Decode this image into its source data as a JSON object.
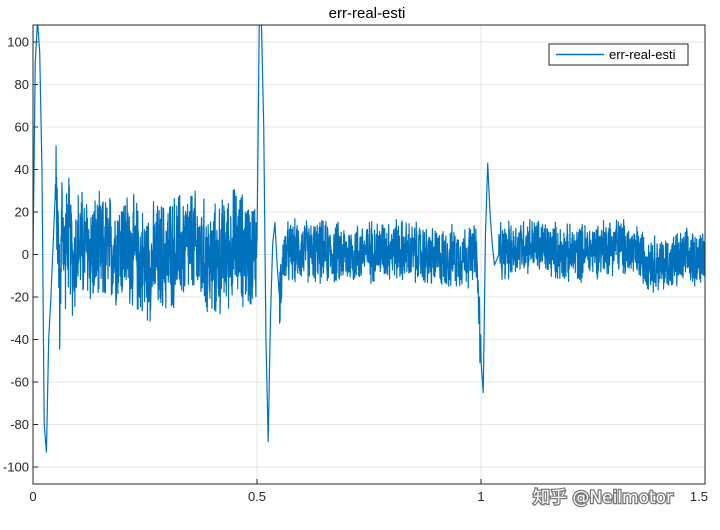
{
  "chart_data": {
    "type": "line",
    "title": "err-real-esti",
    "xlabel": "",
    "ylabel": "",
    "xlim": [
      0,
      1.5
    ],
    "ylim": [
      -108,
      108
    ],
    "grid": true,
    "legend_position": "top-right",
    "x_ticks": [
      0,
      0.5,
      1,
      1.5
    ],
    "x_tick_labels": [
      "0",
      "0.5",
      "1",
      "1.5"
    ],
    "y_ticks": [
      -100,
      -80,
      -60,
      -40,
      -20,
      0,
      20,
      40,
      60,
      80,
      100
    ],
    "y_tick_labels": [
      "-100",
      "-80",
      "-60",
      "-40",
      "-20",
      "0",
      "20",
      "40",
      "60",
      "80",
      "100"
    ],
    "series": [
      {
        "name": "err-real-esti",
        "color": "#0072BD",
        "x": [
          0,
          0.005,
          0.01,
          0.015,
          0.02,
          0.025,
          0.03,
          0.035,
          0.04,
          0.045,
          0.05,
          0.055,
          0.06,
          0.065,
          0.07,
          0.08,
          0.09,
          0.1,
          0.15,
          0.2,
          0.25,
          0.3,
          0.35,
          0.4,
          0.45,
          0.49,
          0.5,
          0.505,
          0.51,
          0.515,
          0.52,
          0.525,
          0.53,
          0.535,
          0.54,
          0.545,
          0.55,
          0.56,
          0.6,
          0.7,
          0.8,
          0.9,
          0.99,
          1.0,
          1.005,
          1.01,
          1.015,
          1.02,
          1.025,
          1.03,
          1.04,
          1.1,
          1.2,
          1.3,
          1.4,
          1.5
        ],
        "y": [
          0,
          90,
          110,
          95,
          40,
          -80,
          -93,
          -40,
          -20,
          5,
          30,
          15,
          -25,
          20,
          0,
          10,
          -5,
          5,
          0,
          5,
          -5,
          0,
          5,
          -5,
          5,
          0,
          5,
          108,
          108,
          60,
          -40,
          -88,
          -30,
          5,
          15,
          -5,
          -20,
          0,
          2,
          0,
          3,
          -2,
          0,
          -50,
          -65,
          10,
          43,
          20,
          5,
          -5,
          0,
          5,
          0,
          5,
          -5,
          0
        ],
        "noise_amplitude_by_segment": [
          {
            "from": 0.05,
            "to": 0.5,
            "amplitude": 22
          },
          {
            "from": 0.55,
            "to": 1.0,
            "amplitude": 12
          },
          {
            "from": 1.04,
            "to": 1.5,
            "amplitude": 11
          }
        ]
      }
    ]
  },
  "watermark": {
    "text": "知乎 @Neilmotor"
  }
}
